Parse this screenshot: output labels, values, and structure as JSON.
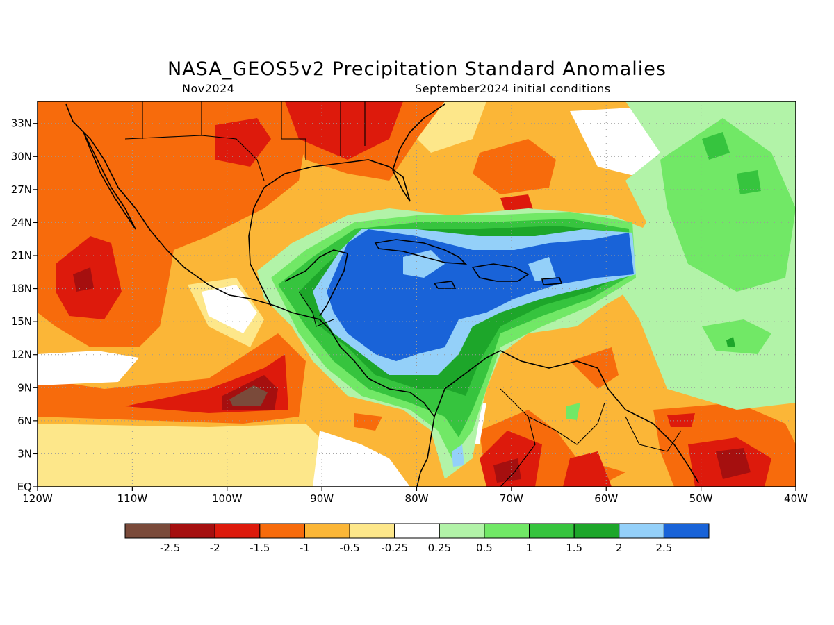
{
  "title": "NASA_GEOS5v2 Precipitation Standard Anomalies",
  "subtitle_left": "Nov2024",
  "subtitle_right": "September2024 initial conditions",
  "map": {
    "lon_range": [
      -120,
      -40
    ],
    "lat_range": [
      0,
      35
    ],
    "lon_ticks": [
      "120W",
      "110W",
      "100W",
      "90W",
      "80W",
      "70W",
      "60W",
      "50W",
      "40W"
    ],
    "lat_ticks": [
      "EQ",
      "3N",
      "6N",
      "9N",
      "12N",
      "15N",
      "18N",
      "21N",
      "24N",
      "27N",
      "30N",
      "33N"
    ],
    "gridlines": "dotted"
  },
  "legend": {
    "colors": [
      "#7a4a3a",
      "#a50f0f",
      "#dd1a0c",
      "#f76b0c",
      "#fbb637",
      "#fde78a",
      "#ffffff",
      "#b2f3a8",
      "#71e866",
      "#36c43e",
      "#1da62a",
      "#94d0f9",
      "#1963d8"
    ],
    "labels": [
      "-2.5",
      "-2",
      "-1.5",
      "-1",
      "-0.5",
      "-0.25",
      "0.25",
      "0.5",
      "1",
      "1.5",
      "2",
      "2.5"
    ]
  }
}
